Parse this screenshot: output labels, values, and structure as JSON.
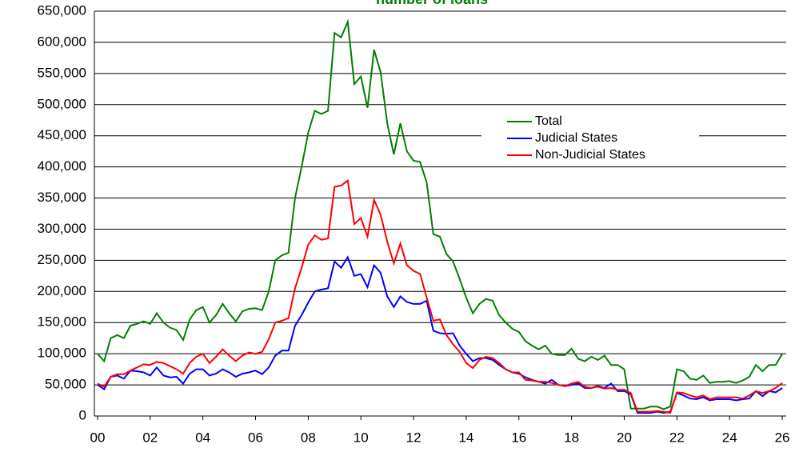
{
  "chart_data": {
    "type": "line",
    "title": "number of loans",
    "x": [
      0,
      0.25,
      0.5,
      0.75,
      1,
      1.25,
      1.5,
      1.75,
      2,
      2.25,
      2.5,
      2.75,
      3,
      3.25,
      3.5,
      3.75,
      4,
      4.25,
      4.5,
      4.75,
      5,
      5.25,
      5.5,
      5.75,
      6,
      6.25,
      6.5,
      6.75,
      7,
      7.25,
      7.5,
      7.75,
      8,
      8.25,
      8.5,
      8.75,
      9,
      9.25,
      9.5,
      9.75,
      10,
      10.25,
      10.5,
      10.75,
      11,
      11.25,
      11.5,
      11.75,
      12,
      12.25,
      12.5,
      12.75,
      13,
      13.25,
      13.5,
      13.75,
      14,
      14.25,
      14.5,
      14.75,
      15,
      15.25,
      15.5,
      15.75,
      16,
      16.25,
      16.5,
      16.75,
      17,
      17.25,
      17.5,
      17.75,
      18,
      18.25,
      18.5,
      18.75,
      19,
      19.25,
      19.5,
      19.75,
      20,
      20.25,
      20.5,
      20.75,
      21,
      21.25,
      21.5,
      21.75,
      22,
      22.25,
      22.5,
      22.75,
      23,
      23.25,
      23.5,
      23.75,
      24,
      24.25,
      24.5,
      24.75,
      25,
      25.25,
      25.5,
      25.75,
      26
    ],
    "series": [
      {
        "name": "Total",
        "color": "#008000",
        "values": [
          100000,
          88000,
          125000,
          130000,
          125000,
          145000,
          148000,
          152000,
          148000,
          165000,
          150000,
          142000,
          138000,
          122000,
          155000,
          170000,
          175000,
          150000,
          162000,
          180000,
          165000,
          152000,
          168000,
          172000,
          173000,
          170000,
          200000,
          250000,
          258000,
          262000,
          350000,
          400000,
          455000,
          490000,
          485000,
          490000,
          615000,
          608000,
          633000,
          533000,
          545000,
          495000,
          588000,
          552000,
          470000,
          420000,
          470000,
          425000,
          410000,
          408000,
          375000,
          292000,
          288000,
          260000,
          248000,
          220000,
          190000,
          165000,
          180000,
          188000,
          185000,
          162000,
          150000,
          140000,
          135000,
          120000,
          113000,
          107000,
          113000,
          100000,
          98000,
          98000,
          108000,
          92000,
          88000,
          95000,
          90000,
          97000,
          82000,
          82000,
          75000,
          12000,
          12000,
          12000,
          15000,
          15000,
          11000,
          15000,
          75000,
          72000,
          60000,
          58000,
          65000,
          53000,
          55000,
          55000,
          56000,
          53000,
          57000,
          63000,
          82000,
          72000,
          82000,
          82000,
          100000
        ]
      },
      {
        "name": "Judicial States",
        "color": "#0000ff",
        "values": [
          50000,
          43000,
          63000,
          65000,
          60000,
          73000,
          72000,
          70000,
          65000,
          78000,
          65000,
          62000,
          63000,
          52000,
          68000,
          75000,
          75000,
          65000,
          68000,
          75000,
          70000,
          63000,
          68000,
          70000,
          73000,
          67000,
          78000,
          97000,
          105000,
          105000,
          145000,
          162000,
          182000,
          200000,
          203000,
          205000,
          248000,
          238000,
          255000,
          225000,
          228000,
          207000,
          242000,
          230000,
          192000,
          175000,
          192000,
          183000,
          180000,
          180000,
          185000,
          137000,
          133000,
          132000,
          133000,
          113000,
          100000,
          88000,
          93000,
          93000,
          90000,
          82000,
          75000,
          70000,
          68000,
          62000,
          58000,
          55000,
          52000,
          58000,
          50000,
          48000,
          50000,
          52000,
          45000,
          45000,
          48000,
          45000,
          52000,
          40000,
          40000,
          35000,
          5000,
          5000,
          5000,
          7000,
          5000,
          7000,
          37000,
          33000,
          28000,
          27000,
          30000,
          25000,
          27000,
          27000,
          27000,
          25000,
          27000,
          28000,
          40000,
          32000,
          40000,
          38000,
          45000
        ]
      },
      {
        "name": "Non-Judicial States",
        "color": "#ff0000",
        "values": [
          52000,
          47000,
          63000,
          67000,
          67000,
          73000,
          78000,
          83000,
          82000,
          87000,
          85000,
          80000,
          75000,
          68000,
          85000,
          95000,
          100000,
          85000,
          95000,
          107000,
          97000,
          88000,
          97000,
          102000,
          100000,
          103000,
          123000,
          150000,
          153000,
          157000,
          205000,
          238000,
          275000,
          290000,
          283000,
          285000,
          368000,
          370000,
          378000,
          308000,
          318000,
          288000,
          347000,
          323000,
          280000,
          245000,
          277000,
          242000,
          233000,
          228000,
          190000,
          153000,
          155000,
          130000,
          115000,
          103000,
          85000,
          77000,
          90000,
          95000,
          93000,
          85000,
          75000,
          70000,
          70000,
          58000,
          57000,
          55000,
          55000,
          53000,
          50000,
          48000,
          52000,
          55000,
          47000,
          45000,
          47000,
          44000,
          45000,
          42000,
          42000,
          37000,
          7000,
          7000,
          7000,
          8000,
          7000,
          5000,
          38000,
          37000,
          33000,
          30000,
          33000,
          27000,
          30000,
          30000,
          30000,
          30000,
          28000,
          33000,
          40000,
          37000,
          40000,
          45000,
          53000
        ]
      }
    ],
    "xlim": [
      -0.12,
      26.15
    ],
    "xticks": [
      {
        "value": 0,
        "label": "00"
      },
      {
        "value": 2,
        "label": "02"
      },
      {
        "value": 4,
        "label": "04"
      },
      {
        "value": 6,
        "label": "06"
      },
      {
        "value": 8,
        "label": "08"
      },
      10,
      12,
      14,
      16,
      18,
      20,
      22,
      24,
      26
    ],
    "ylim": [
      0,
      650000
    ],
    "yticks": [
      0,
      {
        "value": 50000,
        "label": "50,000"
      },
      {
        "value": 100000,
        "label": "100,000"
      },
      {
        "value": 150000,
        "label": "150,000"
      },
      {
        "value": 200000,
        "label": "200,000"
      },
      {
        "value": 250000,
        "label": "250,000"
      },
      {
        "value": 300000,
        "label": "300,000"
      },
      {
        "value": 350000,
        "label": "350,000"
      },
      {
        "value": 400000,
        "label": "400,000"
      },
      {
        "value": 450000,
        "label": "450,000"
      },
      {
        "value": 500000,
        "label": "500,000"
      },
      {
        "value": 550000,
        "label": "550,000"
      },
      {
        "value": 600000,
        "label": "600,000"
      },
      {
        "value": 650000,
        "label": "650,000"
      }
    ],
    "grid": true
  }
}
